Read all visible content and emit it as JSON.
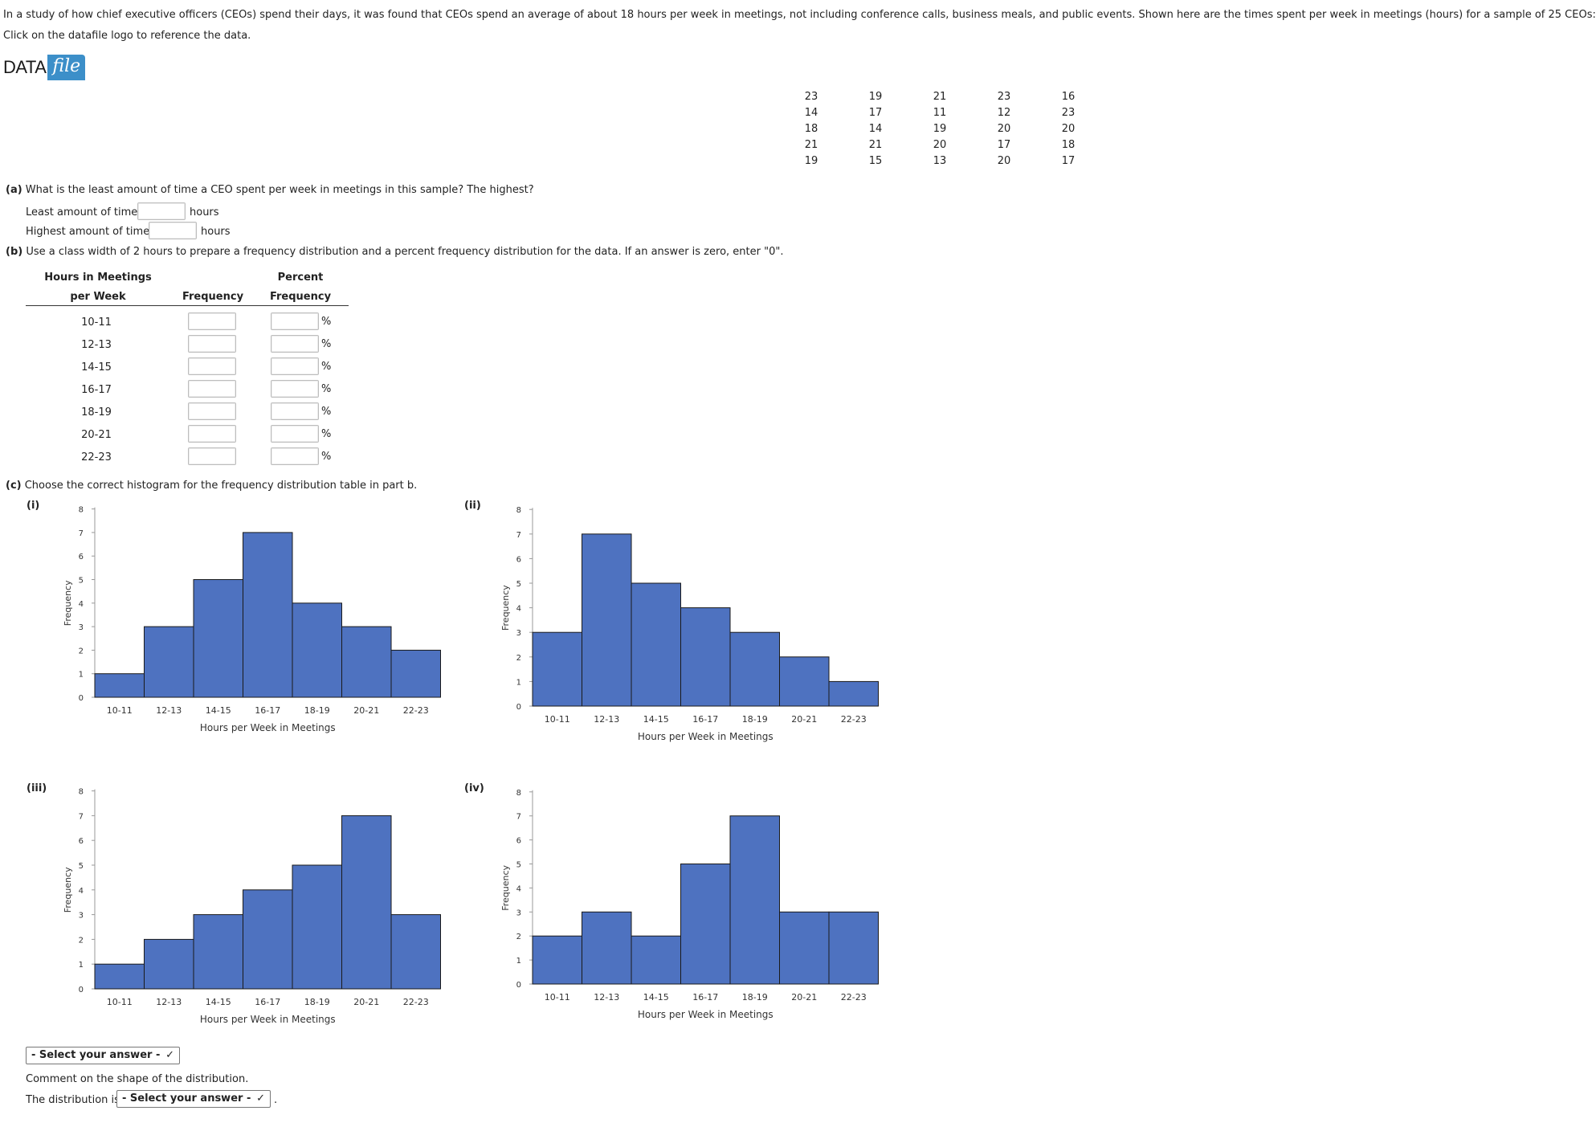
{
  "intro": "In a study of how chief executive officers (CEOs) spend their days, it was found that CEOs spend an average of about 18 hours per week in meetings, not including conference calls, business meals, and public events. Shown here are the times spent per week in meetings (hours) for a sample of 25 CEOs:",
  "click_note": "Click on the datafile logo to reference the data.",
  "logo": {
    "data": "DATA",
    "file": "file"
  },
  "data_grid": [
    [
      "23",
      "19",
      "21",
      "23",
      "16"
    ],
    [
      "14",
      "17",
      "11",
      "12",
      "23"
    ],
    [
      "18",
      "14",
      "19",
      "20",
      "20"
    ],
    [
      "21",
      "21",
      "20",
      "17",
      "18"
    ],
    [
      "19",
      "15",
      "13",
      "20",
      "17"
    ]
  ],
  "part_a": {
    "label": "(a)",
    "question": " What is the least amount of time a CEO spent per week in meetings in this sample? The highest?",
    "least_label": "Least amount of time:",
    "highest_label": "Highest amount of time:",
    "unit": "hours",
    "least_value": "",
    "highest_value": ""
  },
  "part_b": {
    "label": "(b)",
    "question": " Use a class width of 2 hours to prepare a frequency distribution and a percent frequency distribution for the data. If an answer is zero, enter \"0\".",
    "headers": {
      "hours_line1": "Hours in Meetings",
      "hours_line2": "per Week",
      "frequency": "Frequency",
      "percent_line1": "Percent",
      "percent_line2": "Frequency"
    },
    "pct_symbol": "%",
    "rows": [
      {
        "label": "10-11",
        "frequency": "",
        "percent": ""
      },
      {
        "label": "12-13",
        "frequency": "",
        "percent": ""
      },
      {
        "label": "14-15",
        "frequency": "",
        "percent": ""
      },
      {
        "label": "16-17",
        "frequency": "",
        "percent": ""
      },
      {
        "label": "18-19",
        "frequency": "",
        "percent": ""
      },
      {
        "label": "20-21",
        "frequency": "",
        "percent": ""
      },
      {
        "label": "22-23",
        "frequency": "",
        "percent": ""
      }
    ]
  },
  "part_c": {
    "label": "(c)",
    "question": " Choose the correct histogram for the frequency distribution table in part b.",
    "select_answer": "- Select your answer -",
    "comment": "Comment on the shape of the distribution.",
    "distribution_prefix": "The distribution is",
    "distribution_answer": "- Select your answer -",
    "period": "."
  },
  "colors": {
    "bar": "#4e72c0",
    "bar_edge": "#1a1a1a",
    "logo_blue": "#3c8fc9"
  },
  "chart_data": [
    {
      "id": "(i)",
      "type": "bar",
      "categories": [
        "10-11",
        "12-13",
        "14-15",
        "16-17",
        "18-19",
        "20-21",
        "22-23"
      ],
      "values": [
        1,
        3,
        5,
        7,
        4,
        3,
        2
      ],
      "xlabel": "Hours per Week in Meetings",
      "ylabel": "Frequency",
      "ylim": [
        0,
        8
      ],
      "yticks": [
        "0",
        "1",
        "2",
        "3",
        "4",
        "5",
        "6",
        "7",
        "8"
      ]
    },
    {
      "id": "(ii)",
      "type": "bar",
      "categories": [
        "10-11",
        "12-13",
        "14-15",
        "16-17",
        "18-19",
        "20-21",
        "22-23"
      ],
      "values": [
        3,
        7,
        5,
        4,
        3,
        2,
        1
      ],
      "xlabel": "Hours per Week in Meetings",
      "ylabel": "Frequency",
      "ylim": [
        0,
        8
      ],
      "yticks": [
        "0",
        "1",
        "2",
        "3",
        "4",
        "5",
        "6",
        "7",
        "8"
      ]
    },
    {
      "id": "(iii)",
      "type": "bar",
      "categories": [
        "10-11",
        "12-13",
        "14-15",
        "16-17",
        "18-19",
        "20-21",
        "22-23"
      ],
      "values": [
        1,
        2,
        3,
        4,
        5,
        7,
        3
      ],
      "xlabel": "Hours per Week in Meetings",
      "ylabel": "Frequency",
      "ylim": [
        0,
        8
      ],
      "yticks": [
        "0",
        "1",
        "2",
        "3",
        "4",
        "5",
        "6",
        "7",
        "8"
      ]
    },
    {
      "id": "(iv)",
      "type": "bar",
      "categories": [
        "10-11",
        "12-13",
        "14-15",
        "16-17",
        "18-19",
        "20-21",
        "22-23"
      ],
      "values": [
        2,
        3,
        2,
        5,
        7,
        3,
        3
      ],
      "xlabel": "Hours per Week in Meetings",
      "ylabel": "Frequency",
      "ylim": [
        0,
        8
      ],
      "yticks": [
        "0",
        "1",
        "2",
        "3",
        "4",
        "5",
        "6",
        "7",
        "8"
      ]
    }
  ]
}
